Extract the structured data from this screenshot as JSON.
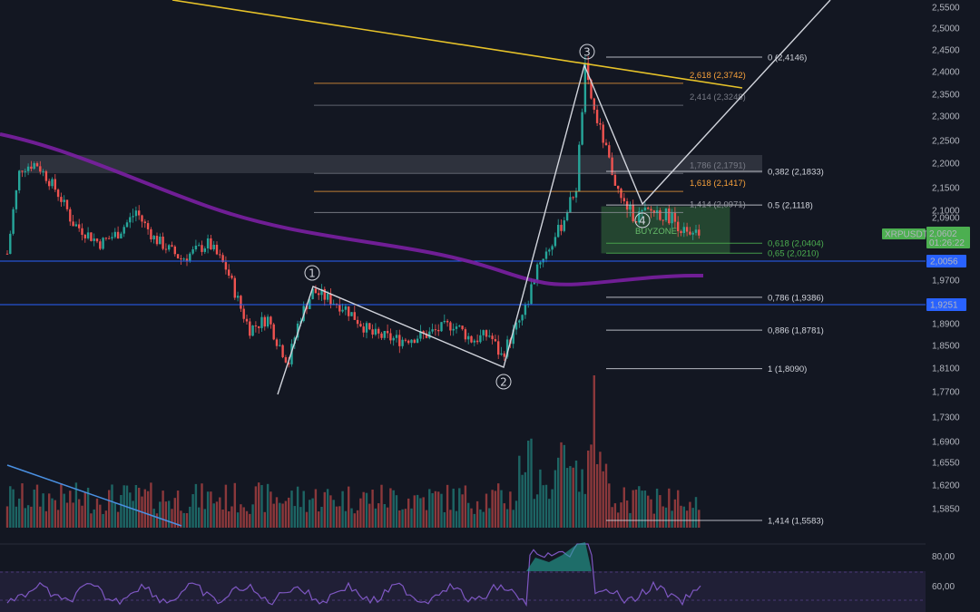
{
  "chart_data": {
    "type": "candlestick",
    "symbol": "XRPUSDT",
    "last_price": "2,0602",
    "countdown": "01:26:22",
    "price_scale": {
      "range": [
        1.5583,
        2.57
      ],
      "ticks": [
        "2,5500",
        "2,5000",
        "2,4500",
        "2,4000",
        "2,3500",
        "2,3000",
        "2,2500",
        "2,2000",
        "2,1500",
        "2,1000",
        "2,0900",
        "1,9700",
        "1,9300",
        "1,8900",
        "1,8500",
        "1,8100",
        "1,7700",
        "1,7300",
        "1,6900",
        "1,6550",
        "1,6200",
        "1,5850"
      ]
    },
    "horizontal_levels": [
      {
        "label": "2,0056",
        "color": "#2962ff"
      },
      {
        "label": "1,9251",
        "color": "#2962ff"
      }
    ],
    "fib_retracement": [
      {
        "text": "0 (2,4146)",
        "value": 2.4146,
        "color": "#d1d4dc"
      },
      {
        "text": "0,382 (2,1833)",
        "value": 2.1833,
        "color": "#d1d4dc"
      },
      {
        "text": "0.5 (2,1118)",
        "value": 2.1118,
        "color": "#d1d4dc"
      },
      {
        "text": "0,618 (2,0404)",
        "value": 2.0404,
        "color": "#4caf50"
      },
      {
        "text": "0,65 (2,0210)",
        "value": 2.021,
        "color": "#4caf50"
      },
      {
        "text": "0,786 (1,9386)",
        "value": 1.9386,
        "color": "#d1d4dc"
      },
      {
        "text": "0,886 (1,8781)",
        "value": 1.8781,
        "color": "#d1d4dc"
      },
      {
        "text": "1 (1,8090)",
        "value": 1.809,
        "color": "#d1d4dc"
      },
      {
        "text": "1,414 (1,5583)",
        "value": 1.5583,
        "color": "#d1d4dc"
      }
    ],
    "fib_extension": [
      {
        "text": "2,618 (2,3742)",
        "value": 2.3742,
        "color": "#f7a13b"
      },
      {
        "text": "2,414 (2,3248)",
        "value": 2.3248,
        "color": "#787b86"
      },
      {
        "text": "1,786 (2,1791)",
        "value": 2.1791,
        "color": "#787b86"
      },
      {
        "text": "1,618 (2,1417)",
        "value": 2.1417,
        "color": "#f7a13b"
      },
      {
        "text": "1,414 (2,0971)",
        "value": 2.0971,
        "color": "#9598a1"
      }
    ],
    "wave_labels": [
      "1",
      "2",
      "3",
      "4"
    ],
    "buy_zone": {
      "label": "BUYZONE",
      "top": 2.1118,
      "bottom": 2.021
    },
    "rsi": {
      "ticks": [
        "80,00",
        "60,00"
      ]
    },
    "colors": {
      "up": "#26a69a",
      "down": "#ef5350",
      "ma": "#7b1fa2",
      "trend": "#e6c229",
      "wave": "#d1d4dc"
    }
  }
}
